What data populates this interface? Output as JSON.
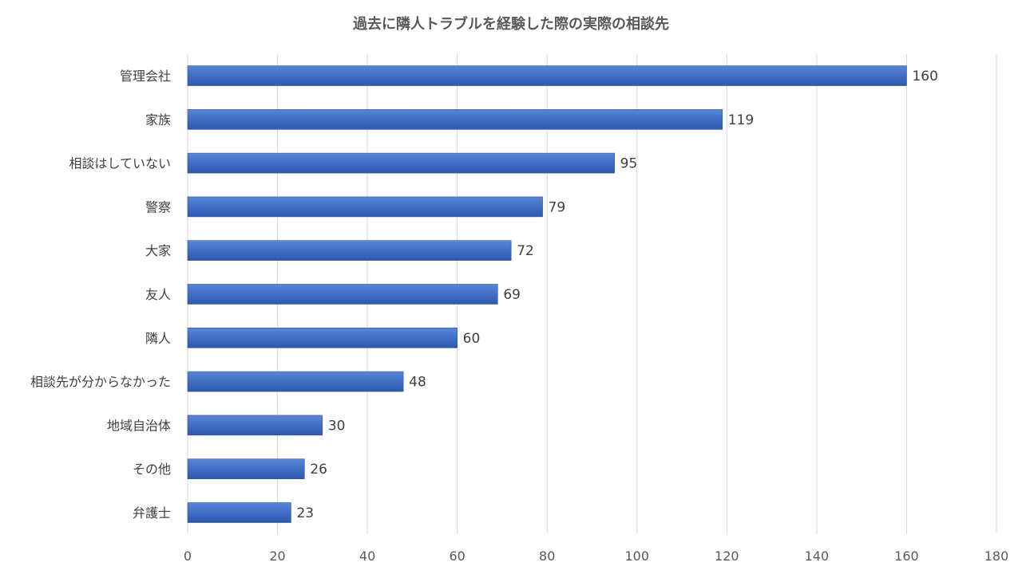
{
  "chart_data": {
    "type": "bar",
    "orientation": "horizontal",
    "title": "過去に隣人トラブルを経験した際の実際の相談先",
    "categories": [
      "管理会社",
      "家族",
      "相談はしていない",
      "警察",
      "大家",
      "友人",
      "隣人",
      "相談先が分からなかった",
      "地域自治体",
      "その他",
      "弁護士"
    ],
    "values": [
      160,
      119,
      95,
      79,
      72,
      69,
      60,
      48,
      30,
      26,
      23
    ],
    "xlim": [
      0,
      180
    ],
    "xticks": [
      0,
      20,
      40,
      60,
      80,
      100,
      120,
      140,
      160,
      180
    ],
    "grid": true,
    "legend": "none",
    "bar_color": "#4472c4"
  }
}
